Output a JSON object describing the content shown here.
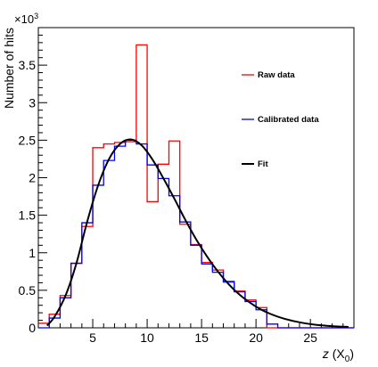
{
  "chart_data": {
    "type": "histogram",
    "xlabel": {
      "symbol": "z",
      "open": " (X",
      "sub": "0",
      "close": ")"
    },
    "ylabel": "Number of hits",
    "y_multiplier": {
      "base": "×10",
      "exponent": "3"
    },
    "xlim": [
      0,
      29
    ],
    "ylim": [
      0,
      4000
    ],
    "x_ticks": [
      5,
      10,
      15,
      20,
      25
    ],
    "y_ticks": [
      0,
      500,
      1000,
      1500,
      2000,
      2500,
      3000,
      3500
    ],
    "y_tick_labels": [
      "0",
      "0.5",
      "1",
      "1.5",
      "2",
      "2.5",
      "3",
      "3.5"
    ],
    "bin_edges": [
      0,
      1,
      2,
      3,
      4,
      5,
      6,
      7,
      8,
      9,
      10,
      11,
      12,
      13,
      14,
      15,
      16,
      17,
      18,
      19,
      20,
      21,
      22,
      23,
      24,
      25,
      26,
      27,
      28,
      29
    ],
    "series": [
      {
        "name": "Raw data",
        "color": "#ff0000",
        "style": "step",
        "values": [
          60,
          180,
          430,
          860,
          1350,
          2400,
          2450,
          2470,
          2480,
          3770,
          1680,
          2180,
          2490,
          1380,
          1110,
          870,
          770,
          620,
          490,
          370,
          270,
          0,
          0,
          0,
          0,
          0,
          0,
          0,
          0
        ]
      },
      {
        "name": "Calibrated data",
        "color": "#0000ff",
        "style": "step",
        "values": [
          0,
          130,
          400,
          860,
          1400,
          1900,
          2230,
          2420,
          2500,
          2450,
          2170,
          1990,
          1760,
          1410,
          1100,
          850,
          740,
          610,
          480,
          350,
          240,
          50,
          0,
          0,
          0,
          0,
          0,
          0,
          0
        ]
      },
      {
        "name": "Fit",
        "color": "#000000",
        "style": "curve",
        "x": [
          0.8,
          1.5,
          2.5,
          3.5,
          4.5,
          5.5,
          6.5,
          7.5,
          8.5,
          9.5,
          10.5,
          11.5,
          12.5,
          13.5,
          14.5,
          15.5,
          16.5,
          17.5,
          18.5,
          19.5,
          20.5,
          21.5,
          22.5,
          23.5,
          24.5,
          25.5,
          26.5,
          27.5,
          28.5
        ],
        "y": [
          30,
          150,
          430,
          860,
          1420,
          1900,
          2250,
          2450,
          2510,
          2430,
          2240,
          1990,
          1720,
          1440,
          1180,
          950,
          750,
          580,
          440,
          330,
          240,
          175,
          125,
          88,
          60,
          40,
          27,
          18,
          12
        ]
      }
    ],
    "legend_placement": "right, inside plot",
    "grid": false
  }
}
